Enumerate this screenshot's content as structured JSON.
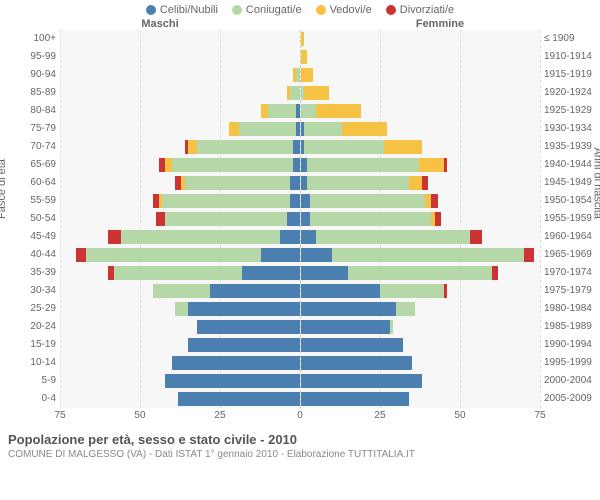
{
  "legend": [
    {
      "label": "Celibi/Nubili",
      "color": "#4a7fb0"
    },
    {
      "label": "Coniugati/e",
      "color": "#b6d7a8"
    },
    {
      "label": "Vedovi/e",
      "color": "#f6c244"
    },
    {
      "label": "Divorziati/e",
      "color": "#cc3333"
    }
  ],
  "headers": {
    "left": "Maschi",
    "right": "Femmine"
  },
  "axis_labels": {
    "left": "Fasce di età",
    "right": "Anni di nascita"
  },
  "x_max": 75,
  "x_ticks": [
    75,
    50,
    25,
    0,
    25,
    50,
    75
  ],
  "age_groups": [
    "100+",
    "95-99",
    "90-94",
    "85-89",
    "80-84",
    "75-79",
    "70-74",
    "65-69",
    "60-64",
    "55-59",
    "50-54",
    "45-49",
    "40-44",
    "35-39",
    "30-34",
    "25-29",
    "20-24",
    "15-19",
    "10-14",
    "5-9",
    "0-4"
  ],
  "birth_years": [
    "≤ 1909",
    "1910-1914",
    "1915-1919",
    "1920-1924",
    "1925-1929",
    "1930-1934",
    "1935-1939",
    "1940-1944",
    "1945-1949",
    "1950-1954",
    "1955-1959",
    "1960-1964",
    "1965-1969",
    "1970-1974",
    "1975-1979",
    "1980-1984",
    "1985-1989",
    "1990-1994",
    "1995-1999",
    "2000-2004",
    "2005-2009"
  ],
  "colors": {
    "celibi": "#4a7fb0",
    "coniugati": "#b6d7a8",
    "vedovi": "#f6c244",
    "divorziati": "#cc3333",
    "bg": "#f7f7f7",
    "grid": "#dddddd"
  },
  "data": {
    "male": [
      {
        "c": 0,
        "m": 0,
        "w": 0,
        "d": 0
      },
      {
        "c": 0,
        "m": 0,
        "w": 0,
        "d": 0
      },
      {
        "c": 0,
        "m": 1,
        "w": 1,
        "d": 0
      },
      {
        "c": 0,
        "m": 3,
        "w": 1,
        "d": 0
      },
      {
        "c": 1,
        "m": 9,
        "w": 2,
        "d": 0
      },
      {
        "c": 1,
        "m": 18,
        "w": 3,
        "d": 0
      },
      {
        "c": 2,
        "m": 30,
        "w": 3,
        "d": 1
      },
      {
        "c": 2,
        "m": 38,
        "w": 2,
        "d": 2
      },
      {
        "c": 3,
        "m": 33,
        "w": 1,
        "d": 2
      },
      {
        "c": 3,
        "m": 40,
        "w": 1,
        "d": 2
      },
      {
        "c": 4,
        "m": 38,
        "w": 0,
        "d": 3
      },
      {
        "c": 6,
        "m": 50,
        "w": 0,
        "d": 4
      },
      {
        "c": 12,
        "m": 55,
        "w": 0,
        "d": 3
      },
      {
        "c": 18,
        "m": 40,
        "w": 0,
        "d": 2
      },
      {
        "c": 28,
        "m": 18,
        "w": 0,
        "d": 0
      },
      {
        "c": 35,
        "m": 4,
        "w": 0,
        "d": 0
      },
      {
        "c": 32,
        "m": 0,
        "w": 0,
        "d": 0
      },
      {
        "c": 35,
        "m": 0,
        "w": 0,
        "d": 0
      },
      {
        "c": 40,
        "m": 0,
        "w": 0,
        "d": 0
      },
      {
        "c": 42,
        "m": 0,
        "w": 0,
        "d": 0
      },
      {
        "c": 38,
        "m": 0,
        "w": 0,
        "d": 0
      }
    ],
    "female": [
      {
        "c": 0,
        "m": 0,
        "w": 1,
        "d": 0
      },
      {
        "c": 0,
        "m": 0,
        "w": 2,
        "d": 0
      },
      {
        "c": 0,
        "m": 0,
        "w": 4,
        "d": 0
      },
      {
        "c": 0,
        "m": 1,
        "w": 8,
        "d": 0
      },
      {
        "c": 0,
        "m": 5,
        "w": 14,
        "d": 0
      },
      {
        "c": 1,
        "m": 12,
        "w": 14,
        "d": 0
      },
      {
        "c": 1,
        "m": 25,
        "w": 12,
        "d": 0
      },
      {
        "c": 2,
        "m": 35,
        "w": 8,
        "d": 1
      },
      {
        "c": 2,
        "m": 32,
        "w": 4,
        "d": 2
      },
      {
        "c": 3,
        "m": 36,
        "w": 2,
        "d": 2
      },
      {
        "c": 3,
        "m": 38,
        "w": 1,
        "d": 2
      },
      {
        "c": 5,
        "m": 48,
        "w": 0,
        "d": 4
      },
      {
        "c": 10,
        "m": 60,
        "w": 0,
        "d": 3
      },
      {
        "c": 15,
        "m": 45,
        "w": 0,
        "d": 2
      },
      {
        "c": 25,
        "m": 20,
        "w": 0,
        "d": 1
      },
      {
        "c": 30,
        "m": 6,
        "w": 0,
        "d": 0
      },
      {
        "c": 28,
        "m": 1,
        "w": 0,
        "d": 0
      },
      {
        "c": 32,
        "m": 0,
        "w": 0,
        "d": 0
      },
      {
        "c": 35,
        "m": 0,
        "w": 0,
        "d": 0
      },
      {
        "c": 38,
        "m": 0,
        "w": 0,
        "d": 0
      },
      {
        "c": 34,
        "m": 0,
        "w": 0,
        "d": 0
      }
    ]
  },
  "footer": {
    "title": "Popolazione per età, sesso e stato civile - 2010",
    "subtitle": "COMUNE DI MALGESSO (VA) - Dati ISTAT 1° gennaio 2010 - Elaborazione TUTTITALIA.IT"
  }
}
